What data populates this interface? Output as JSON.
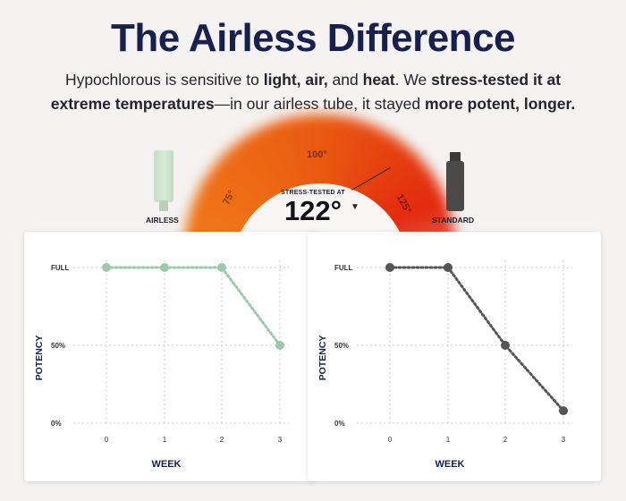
{
  "title": "The Airless Difference",
  "subtitle": {
    "p1": "Hypochlorous is sensitive to ",
    "b1": "light, air,",
    "p2": " and ",
    "b2": "heat",
    "p3": ". We ",
    "b3": "stress-tested it at extreme temperatures",
    "p4": "—in our airless tube, it stayed ",
    "b4": "more potent, longer."
  },
  "dial": {
    "ticks": [
      "75°",
      "100°",
      "125°"
    ],
    "stress_label": "STRESS-TESTED AT",
    "stress_value": "122°",
    "left_product": "AIRLESS",
    "right_product": "STANDARD",
    "colors": {
      "warm": "#f07a1a",
      "hot": "#e2290f"
    }
  },
  "chart_data": [
    {
      "type": "line",
      "x": [
        0,
        1,
        2,
        3
      ],
      "values": [
        100,
        100,
        100,
        50
      ],
      "color": "#9ccaa9",
      "xlabel": "WEEK",
      "ylabel": "POTENCY",
      "yticks": [
        "FULL",
        "50%",
        "0%"
      ],
      "ylim": [
        0,
        100
      ],
      "grid": true
    },
    {
      "type": "line",
      "x": [
        0,
        1,
        2,
        3
      ],
      "values": [
        100,
        100,
        50,
        8
      ],
      "color": "#555555",
      "xlabel": "WEEK",
      "ylabel": "POTENCY",
      "yticks": [
        "FULL",
        "50%",
        "0%"
      ],
      "ylim": [
        0,
        100
      ],
      "grid": true
    }
  ]
}
